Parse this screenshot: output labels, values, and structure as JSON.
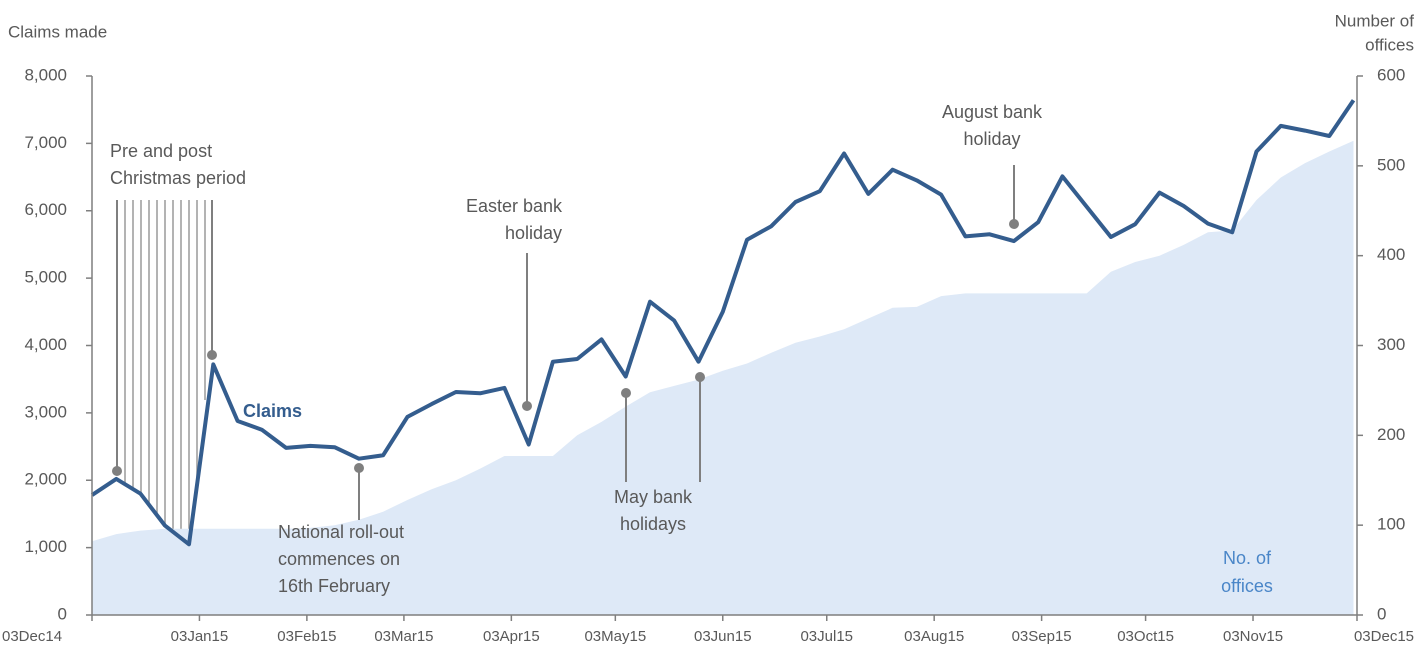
{
  "chart_data": {
    "type": "line",
    "y_label": "Claims made",
    "y2_label": [
      "Number of",
      "offices"
    ],
    "x": [
      "2014-12-03",
      "2014-12-10",
      "2014-12-17",
      "2014-12-24",
      "2014-12-31",
      "2015-01-07",
      "2015-01-14",
      "2015-01-21",
      "2015-01-28",
      "2015-02-04",
      "2015-02-11",
      "2015-02-18",
      "2015-02-25",
      "2015-03-04",
      "2015-03-11",
      "2015-03-18",
      "2015-03-25",
      "2015-04-01",
      "2015-04-08",
      "2015-04-15",
      "2015-04-22",
      "2015-04-29",
      "2015-05-06",
      "2015-05-13",
      "2015-05-20",
      "2015-05-27",
      "2015-06-03",
      "2015-06-10",
      "2015-06-17",
      "2015-06-24",
      "2015-07-01",
      "2015-07-08",
      "2015-07-15",
      "2015-07-22",
      "2015-07-29",
      "2015-08-05",
      "2015-08-12",
      "2015-08-19",
      "2015-08-26",
      "2015-09-02",
      "2015-09-09",
      "2015-09-16",
      "2015-09-23",
      "2015-09-30",
      "2015-10-07",
      "2015-10-14",
      "2015-10-21",
      "2015-10-28",
      "2015-11-04",
      "2015-11-11",
      "2015-11-18",
      "2015-11-25",
      "2015-12-02"
    ],
    "series": [
      {
        "name": "Claims",
        "color": "#345d8e",
        "values": [
          1780,
          2020,
          1800,
          1330,
          1050,
          3720,
          2880,
          2750,
          2480,
          2510,
          2490,
          2320,
          2370,
          2940,
          3130,
          3310,
          3290,
          3370,
          2530,
          3760,
          3800,
          4090,
          3540,
          4650,
          4370,
          3760,
          4500,
          5570,
          5770,
          6130,
          6290,
          6850,
          6250,
          6610,
          6450,
          6240,
          5620,
          5650,
          5550,
          5830,
          6510,
          6060,
          5610,
          5800,
          6270,
          6070,
          5810,
          5680,
          6880,
          7260,
          7190,
          7110,
          7640
        ]
      },
      {
        "name": [
          "No. of",
          "offices"
        ],
        "color": "#dee9f7",
        "label_color": "#4a86c8",
        "axis": "y2",
        "kind": "area",
        "values": [
          82,
          90,
          94,
          96,
          96,
          96,
          96,
          96,
          96,
          97,
          100,
          106,
          115,
          128,
          140,
          150,
          163,
          177,
          177,
          177,
          200,
          215,
          232,
          248,
          255,
          262,
          272,
          280,
          292,
          303,
          310,
          318,
          330,
          342,
          343,
          355,
          358,
          358,
          358,
          358,
          358,
          358,
          382,
          393,
          400,
          412,
          426,
          428,
          462,
          487,
          503,
          516,
          528
        ]
      }
    ],
    "xlim": [
      "2014-12-03",
      "2015-12-03"
    ],
    "xticks": [
      {
        "value": "2014-12-03",
        "label": "03Dec14"
      },
      {
        "value": "2015-01-03",
        "label": "03Jan15"
      },
      {
        "value": "2015-02-03",
        "label": "03Feb15"
      },
      {
        "value": "2015-03-03",
        "label": "03Mar15"
      },
      {
        "value": "2015-04-03",
        "label": "03Apr15"
      },
      {
        "value": "2015-05-03",
        "label": "03May15"
      },
      {
        "value": "2015-06-03",
        "label": "03Jun15"
      },
      {
        "value": "2015-07-03",
        "label": "03Jul15"
      },
      {
        "value": "2015-08-03",
        "label": "03Aug15"
      },
      {
        "value": "2015-09-03",
        "label": "03Sep15"
      },
      {
        "value": "2015-10-03",
        "label": "03Oct15"
      },
      {
        "value": "2015-11-03",
        "label": "03Nov15"
      },
      {
        "value": "2015-12-03",
        "label": "03Dec15"
      }
    ],
    "ylim": [
      0,
      8000
    ],
    "yticks": [
      0,
      {
        "value": 1000,
        "label": "1,000"
      },
      {
        "value": 2000,
        "label": "2,000"
      },
      {
        "value": 3000,
        "label": "3,000"
      },
      {
        "value": 4000,
        "label": "4,000"
      },
      {
        "value": 5000,
        "label": "5,000"
      },
      {
        "value": 6000,
        "label": "6,000"
      },
      {
        "value": 7000,
        "label": "7,000"
      },
      {
        "value": 8000,
        "label": "8,000"
      }
    ],
    "y2lim": [
      0,
      600
    ],
    "y2ticks": [
      0,
      100,
      200,
      300,
      400,
      500,
      600
    ],
    "annotations": [
      [
        "Pre and post",
        "Christmas period"
      ],
      [
        "Easter bank",
        "holiday"
      ],
      [
        "National roll-out",
        "commences on",
        "16th February"
      ],
      [
        "May bank",
        "holidays"
      ],
      [
        "August bank",
        "holiday"
      ]
    ]
  }
}
